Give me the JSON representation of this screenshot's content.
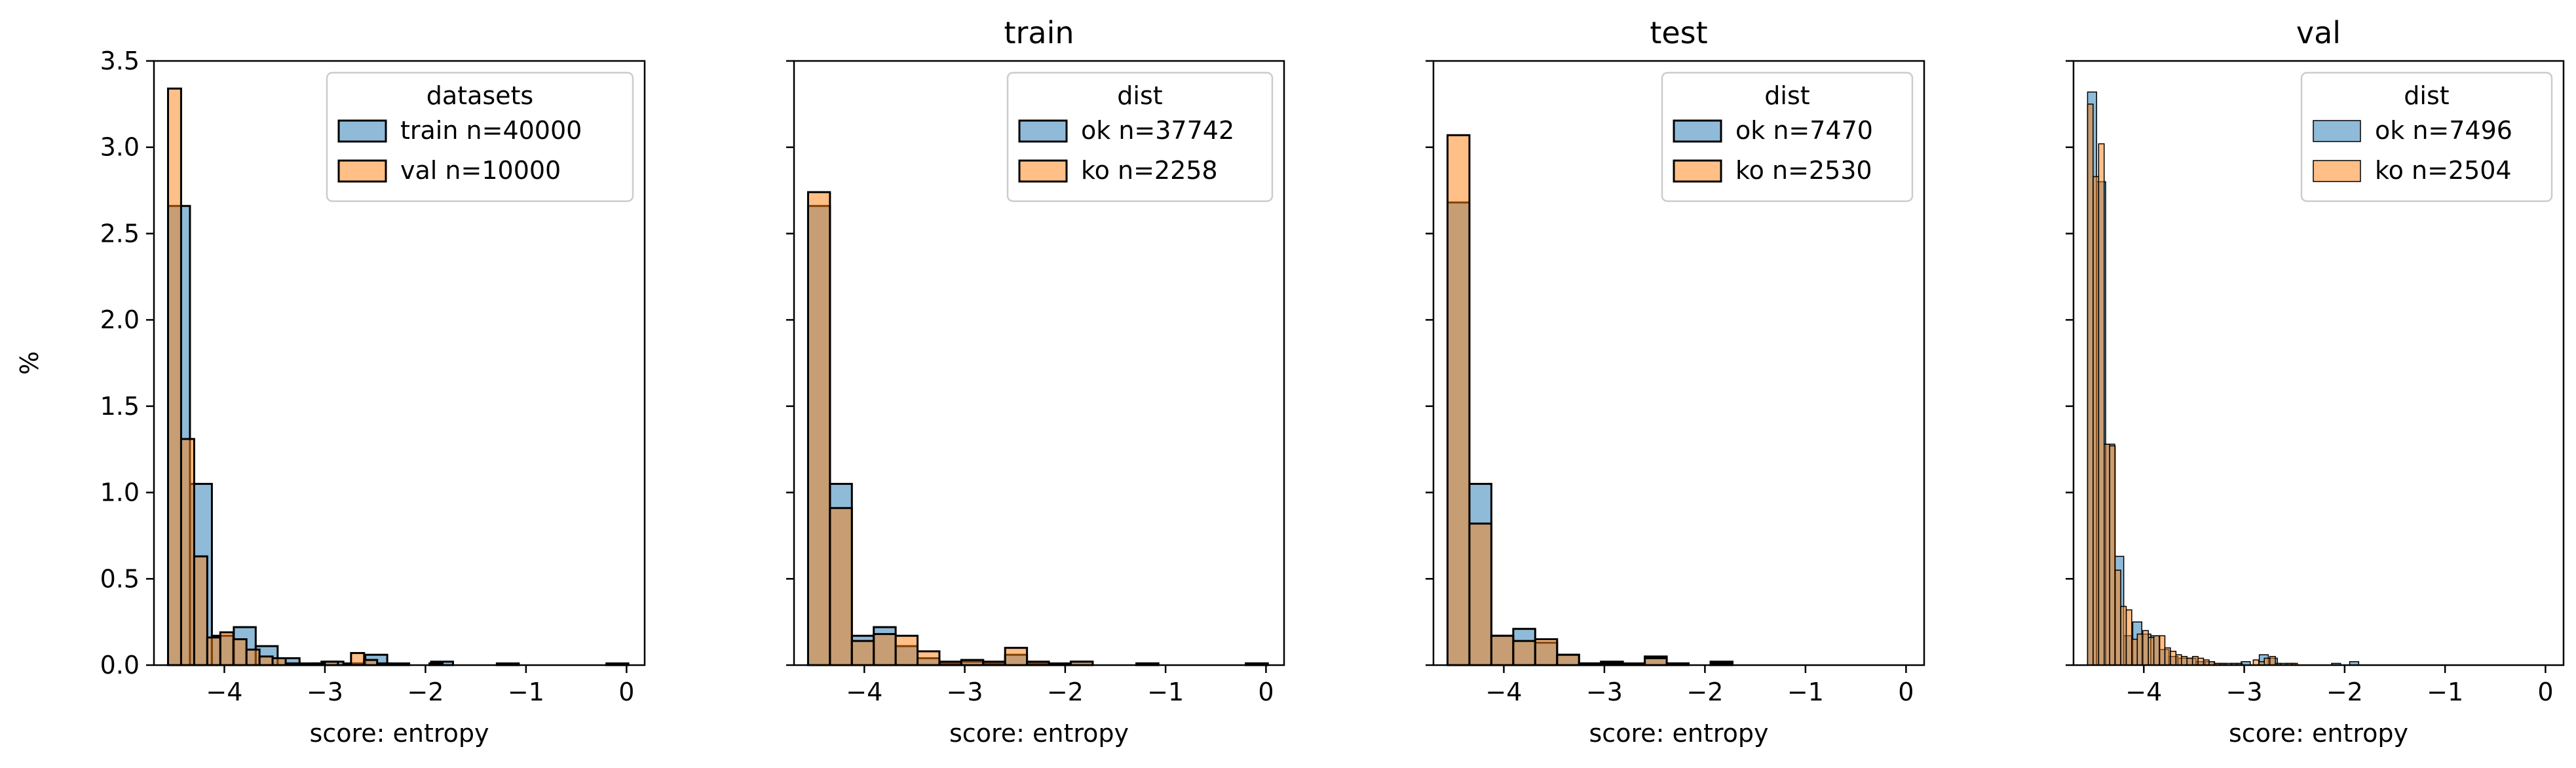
{
  "colors": {
    "blue": "#1f77b4",
    "orange": "#ff7f0e",
    "edge": "#000000",
    "legend_frame": "#cccccc"
  },
  "chart_data": [
    {
      "type": "bar",
      "title": "",
      "xlabel": "score: entropy",
      "ylabel": "%",
      "xlim": [
        -4.7,
        0.18
      ],
      "ylim": [
        0,
        3.5
      ],
      "xticks": [
        "−4",
        "−3",
        "−2",
        "−1",
        "0"
      ],
      "xtick_values": [
        -4,
        -3,
        -2,
        -1,
        0
      ],
      "yticks": [
        "0.0",
        "0.5",
        "1.0",
        "1.5",
        "2.0",
        "2.5",
        "3.0",
        "3.5"
      ],
      "ytick_values": [
        0,
        0.5,
        1,
        1.5,
        2,
        2.5,
        3,
        3.5
      ],
      "grid": false,
      "legend": {
        "title": "datasets",
        "placement": "top-right"
      },
      "series": [
        {
          "name": "train n=40000",
          "color": "blue",
          "bin_edges": [
            -4.56,
            -4.342,
            -4.124,
            -3.906,
            -3.688,
            -3.47,
            -3.252,
            -3.034,
            -2.816,
            -2.598,
            -2.38,
            -2.162,
            -1.944,
            -1.726,
            -1.508,
            -1.29,
            -1.072,
            -0.854,
            -0.636,
            -0.418,
            -0.2,
            0.018
          ],
          "values": [
            2.66,
            1.05,
            0.17,
            0.22,
            0.11,
            0.04,
            0.01,
            0.02,
            0.01,
            0.06,
            0.01,
            0.0,
            0.02,
            0.0,
            0.0,
            0.01,
            0.0,
            0.0,
            0.0,
            0.0,
            0.01
          ]
        },
        {
          "name": "val n=10000",
          "color": "orange",
          "bin_edges": [
            -4.56,
            -4.43,
            -4.3,
            -4.17,
            -4.04,
            -3.91,
            -3.78,
            -3.65,
            -3.52,
            -3.39,
            -3.26,
            -3.13,
            -3.0,
            -2.87,
            -2.74,
            -2.61,
            -2.48,
            -2.35,
            -2.22,
            -2.09,
            -1.96,
            -1.83
          ],
          "values": [
            3.34,
            1.31,
            0.63,
            0.16,
            0.19,
            0.15,
            0.09,
            0.05,
            0.04,
            0.01,
            0.0,
            0.01,
            0.02,
            0.0,
            0.07,
            0.03,
            0.01,
            0.0,
            0.0,
            0.0,
            0.01
          ]
        }
      ]
    },
    {
      "type": "bar",
      "title": "train",
      "xlabel": "score: entropy",
      "ylabel": "",
      "xlim": [
        -4.7,
        0.18
      ],
      "ylim": [
        0,
        3.5
      ],
      "xticks": [
        "−4",
        "−3",
        "−2",
        "−1",
        "0"
      ],
      "xtick_values": [
        -4,
        -3,
        -2,
        -1,
        0
      ],
      "grid": false,
      "legend": {
        "title": "dist",
        "placement": "top-right"
      },
      "series": [
        {
          "name": "ok n=37742",
          "color": "blue",
          "bin_edges": [
            -4.56,
            -4.342,
            -4.124,
            -3.906,
            -3.688,
            -3.47,
            -3.252,
            -3.034,
            -2.816,
            -2.598,
            -2.38,
            -2.162,
            -1.944,
            -1.726,
            -1.508,
            -1.29,
            -1.072,
            -0.854,
            -0.636,
            -0.418,
            -0.2,
            0.018
          ],
          "values": [
            2.66,
            1.05,
            0.17,
            0.22,
            0.11,
            0.04,
            0.01,
            0.02,
            0.01,
            0.06,
            0.01,
            0.0,
            0.02,
            0.0,
            0.0,
            0.01,
            0.0,
            0.0,
            0.0,
            0.0,
            0.01
          ]
        },
        {
          "name": "ko n=2258",
          "color": "orange",
          "bin_edges": [
            -4.56,
            -4.342,
            -4.124,
            -3.906,
            -3.688,
            -3.47,
            -3.252,
            -3.034,
            -2.816,
            -2.598,
            -2.38,
            -2.162,
            -1.944,
            -1.726,
            -1.508,
            -1.29,
            -1.072,
            -0.854,
            -0.636,
            -0.418,
            -0.2,
            0.018
          ],
          "values": [
            2.74,
            0.91,
            0.14,
            0.18,
            0.17,
            0.08,
            0.02,
            0.03,
            0.02,
            0.1,
            0.02,
            0.01,
            0.02,
            0.0,
            0.0,
            0.01,
            0.0,
            0.0,
            0.0,
            0.0,
            0.01
          ]
        }
      ]
    },
    {
      "type": "bar",
      "title": "test",
      "xlabel": "score: entropy",
      "ylabel": "",
      "xlim": [
        -4.7,
        0.18
      ],
      "ylim": [
        0,
        3.5
      ],
      "xticks": [
        "−4",
        "−3",
        "−2",
        "−1",
        "0"
      ],
      "xtick_values": [
        -4,
        -3,
        -2,
        -1,
        0
      ],
      "grid": false,
      "legend": {
        "title": "dist",
        "placement": "top-right"
      },
      "series": [
        {
          "name": "ok n=7470",
          "color": "blue",
          "bin_edges": [
            -4.56,
            -4.342,
            -4.124,
            -3.906,
            -3.688,
            -3.47,
            -3.252,
            -3.034,
            -2.816,
            -2.598,
            -2.38,
            -2.162,
            -1.944,
            -1.726,
            -1.508,
            -1.29,
            -1.072,
            -0.854,
            -0.636,
            -0.418,
            -0.2,
            0.018
          ],
          "values": [
            2.68,
            1.05,
            0.17,
            0.21,
            0.13,
            0.06,
            0.01,
            0.02,
            0.01,
            0.05,
            0.01,
            0.0,
            0.02,
            0.0,
            0.0,
            0.0,
            0.0,
            0.0,
            0.0,
            0.0,
            0.0
          ]
        },
        {
          "name": "ko n=2530",
          "color": "orange",
          "bin_edges": [
            -4.56,
            -4.342,
            -4.124,
            -3.906,
            -3.688,
            -3.47,
            -3.252,
            -3.034,
            -2.816,
            -2.598,
            -2.38,
            -2.162,
            -1.944,
            -1.726,
            -1.508,
            -1.29,
            -1.072,
            -0.854,
            -0.636,
            -0.418,
            -0.2,
            0.018
          ],
          "values": [
            3.07,
            0.82,
            0.17,
            0.14,
            0.15,
            0.06,
            0.01,
            0.01,
            0.0,
            0.04,
            0.01,
            0.0,
            0.01,
            0.0,
            0.0,
            0.0,
            0.0,
            0.0,
            0.0,
            0.0,
            0.0
          ]
        }
      ]
    },
    {
      "type": "bar",
      "title": "val",
      "xlabel": "score: entropy",
      "ylabel": "",
      "xlim": [
        -4.7,
        0.18
      ],
      "ylim": [
        0,
        3.5
      ],
      "xticks": [
        "−4",
        "−3",
        "−2",
        "−1",
        "0"
      ],
      "xtick_values": [
        -4,
        -3,
        -2,
        -1,
        0
      ],
      "grid": false,
      "legend": {
        "title": "dist",
        "placement": "top-right"
      },
      "series": [
        {
          "name": "ok n=7496",
          "color": "blue",
          "bin_edges": [
            -4.56,
            -4.47,
            -4.38,
            -4.29,
            -4.2,
            -4.11,
            -4.02,
            -3.93,
            -3.84,
            -3.75,
            -3.66,
            -3.57,
            -3.48,
            -3.39,
            -3.3,
            -3.21,
            -3.12,
            -3.03,
            -2.94,
            -2.85,
            -2.76,
            -2.67,
            -2.58,
            -2.49,
            -2.4,
            -2.31,
            -2.22,
            -2.13,
            -2.04,
            -1.95,
            -1.86
          ],
          "values": [
            3.32,
            2.8,
            1.28,
            0.63,
            0.17,
            0.25,
            0.18,
            0.17,
            0.09,
            0.05,
            0.04,
            0.04,
            0.02,
            0.02,
            0.01,
            0.01,
            0.01,
            0.02,
            0.0,
            0.06,
            0.04,
            0.01,
            0.01,
            0.0,
            0.0,
            0.0,
            0.0,
            0.01,
            0.0,
            0.02
          ]
        },
        {
          "name": "ko n=2504",
          "color": "orange",
          "bin_edges": [
            -4.56,
            -4.505,
            -4.45,
            -4.395,
            -4.34,
            -4.285,
            -4.23,
            -4.175,
            -4.12,
            -4.065,
            -4.01,
            -3.955,
            -3.9,
            -3.845,
            -3.79,
            -3.735,
            -3.68,
            -3.625,
            -3.57,
            -3.515,
            -3.46,
            -3.405,
            -3.35,
            -3.295,
            -3.24,
            -3.185,
            -3.13,
            -3.075,
            -3.02,
            -2.965,
            -2.91,
            -2.855,
            -2.8,
            -2.745,
            -2.69,
            -2.635,
            -2.58,
            -2.525,
            -2.47
          ],
          "values": [
            3.25,
            2.83,
            3.02,
            1.28,
            1.27,
            0.55,
            0.34,
            0.32,
            0.15,
            0.18,
            0.2,
            0.16,
            0.17,
            0.17,
            0.1,
            0.08,
            0.06,
            0.05,
            0.04,
            0.05,
            0.04,
            0.03,
            0.02,
            0.01,
            0.01,
            0.0,
            0.01,
            0.01,
            0.0,
            0.0,
            0.03,
            0.02,
            0.04,
            0.05,
            0.01,
            0.0,
            0.01,
            0.01
          ]
        }
      ]
    }
  ]
}
